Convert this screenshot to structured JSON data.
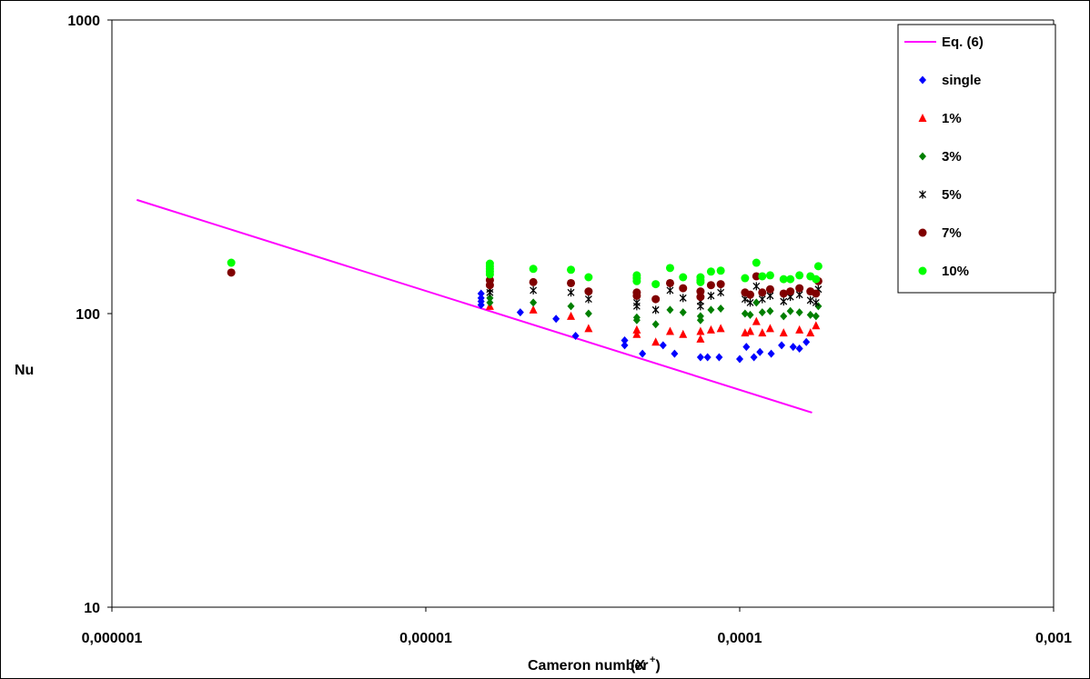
{
  "chart_data": {
    "type": "scatter",
    "title": "",
    "xlabel": "Cameron number",
    "xlabel_symbol": "(X",
    "xlabel_sup": "+",
    "xlabel_close": ")",
    "ylabel": "Nu",
    "x_scale": "log",
    "y_scale": "log",
    "xlim": [
      1e-06,
      0.001
    ],
    "ylim": [
      10,
      1000
    ],
    "x_ticks": [
      {
        "value": 1e-06,
        "label": "0,000001"
      },
      {
        "value": 1e-05,
        "label": "0,00001"
      },
      {
        "value": 0.0001,
        "label": "0,0001"
      },
      {
        "value": 0.001,
        "label": "0,001"
      }
    ],
    "y_ticks": [
      {
        "value": 10,
        "label": "10"
      },
      {
        "value": 100,
        "label": "100"
      },
      {
        "value": 1000,
        "label": "1000"
      }
    ],
    "grid": false,
    "legend_position": "top-right",
    "series": [
      {
        "name": "Eq. (6)",
        "kind": "line",
        "color": "#ff00ff",
        "x": [
          1.2e-06,
          0.00017
        ],
        "y": [
          244,
          46
        ]
      },
      {
        "name": "single",
        "kind": "diamond",
        "color": "#0000ff",
        "x": [
          1.5e-05,
          1.5e-05,
          1.5e-05,
          1.5e-05,
          2e-05,
          2.6e-05,
          3e-05,
          4.3e-05,
          4.3e-05,
          4.9e-05,
          5.7e-05,
          6.2e-05,
          7.5e-05,
          7.9e-05,
          8.6e-05,
          0.0001,
          0.000105,
          0.000111,
          0.000116,
          0.000126,
          0.000136,
          0.000148,
          0.000155,
          0.000163
        ],
        "y": [
          117,
          113,
          110,
          107,
          101,
          96,
          84,
          81,
          78,
          73,
          78,
          73,
          71,
          71,
          71,
          70,
          77,
          71,
          74,
          73,
          78,
          77,
          76,
          80
        ]
      },
      {
        "name": "1%",
        "kind": "triangle",
        "color": "#ff0000",
        "x": [
          1.6e-05,
          2.2e-05,
          2.9e-05,
          3.3e-05,
          4.7e-05,
          4.7e-05,
          5.4e-05,
          6e-05,
          6.6e-05,
          7.5e-05,
          7.5e-05,
          8.1e-05,
          8.7e-05,
          0.000104,
          0.000108,
          0.000113,
          0.000118,
          0.000125,
          0.000138,
          0.000155,
          0.000168,
          0.000175
        ],
        "y": [
          106,
          103,
          98,
          89,
          88,
          85,
          80,
          87,
          85,
          87,
          82,
          88,
          89,
          86,
          87,
          94,
          86,
          89,
          86,
          88,
          86,
          91
        ]
      },
      {
        "name": "3%",
        "kind": "diamond",
        "color": "#007f00",
        "x": [
          1.6e-05,
          1.6e-05,
          2.2e-05,
          2.9e-05,
          3.3e-05,
          4.7e-05,
          4.7e-05,
          5.4e-05,
          6e-05,
          6.6e-05,
          7.5e-05,
          7.5e-05,
          8.1e-05,
          8.7e-05,
          0.000104,
          0.000108,
          0.000113,
          0.000118,
          0.000125,
          0.000138,
          0.000145,
          0.000155,
          0.000168,
          0.000175,
          0.000178
        ],
        "y": [
          113,
          109,
          109,
          106,
          100,
          97,
          95,
          92,
          103,
          101,
          98,
          95,
          103,
          104,
          100,
          99,
          109,
          101,
          102,
          98,
          102,
          101,
          99,
          98,
          106
        ]
      },
      {
        "name": "5%",
        "kind": "star",
        "color": "#000000",
        "x": [
          1.6e-05,
          1.6e-05,
          2.2e-05,
          2.9e-05,
          3.3e-05,
          4.7e-05,
          4.7e-05,
          5.4e-05,
          6e-05,
          6.6e-05,
          7.5e-05,
          7.5e-05,
          8.1e-05,
          8.7e-05,
          0.000104,
          0.000108,
          0.000113,
          0.000118,
          0.000125,
          0.000138,
          0.000145,
          0.000155,
          0.000168,
          0.000175,
          0.000178
        ],
        "y": [
          121,
          118,
          120,
          118,
          112,
          109,
          106,
          103,
          120,
          113,
          110,
          106,
          115,
          118,
          112,
          109,
          124,
          112,
          115,
          110,
          114,
          116,
          111,
          109,
          121
        ]
      },
      {
        "name": "7%",
        "kind": "circle",
        "color": "#800000",
        "x": [
          2.4e-06,
          1.6e-05,
          1.6e-05,
          2.2e-05,
          2.9e-05,
          3.3e-05,
          4.7e-05,
          4.7e-05,
          5.4e-05,
          6e-05,
          6.6e-05,
          7.5e-05,
          7.5e-05,
          8.1e-05,
          8.7e-05,
          0.000104,
          0.000108,
          0.000113,
          0.000118,
          0.000125,
          0.000138,
          0.000145,
          0.000155,
          0.000168,
          0.000175,
          0.000178
        ],
        "y": [
          138,
          130,
          125,
          128,
          127,
          119,
          118,
          115,
          112,
          127,
          122,
          119,
          114,
          125,
          126,
          118,
          116,
          134,
          118,
          121,
          117,
          119,
          122,
          119,
          117,
          129
        ]
      },
      {
        "name": "10%",
        "kind": "circle",
        "color": "#00ff00",
        "x": [
          2.4e-06,
          1.6e-05,
          1.6e-05,
          1.6e-05,
          1.6e-05,
          1.6e-05,
          2.2e-05,
          2.9e-05,
          3.3e-05,
          4.7e-05,
          4.7e-05,
          4.7e-05,
          5.4e-05,
          6e-05,
          6.6e-05,
          7.5e-05,
          7.5e-05,
          7.5e-05,
          8.1e-05,
          8.7e-05,
          0.000104,
          0.000113,
          0.000118,
          0.000125,
          0.000138,
          0.000145,
          0.000155,
          0.000168,
          0.000175,
          0.000178
        ],
        "y": [
          149,
          148,
          145,
          142,
          139,
          136,
          142,
          141,
          133,
          135,
          132,
          129,
          126,
          143,
          133,
          133,
          130,
          128,
          139,
          140,
          132,
          149,
          134,
          135,
          131,
          131,
          135,
          134,
          131,
          145
        ]
      }
    ]
  }
}
